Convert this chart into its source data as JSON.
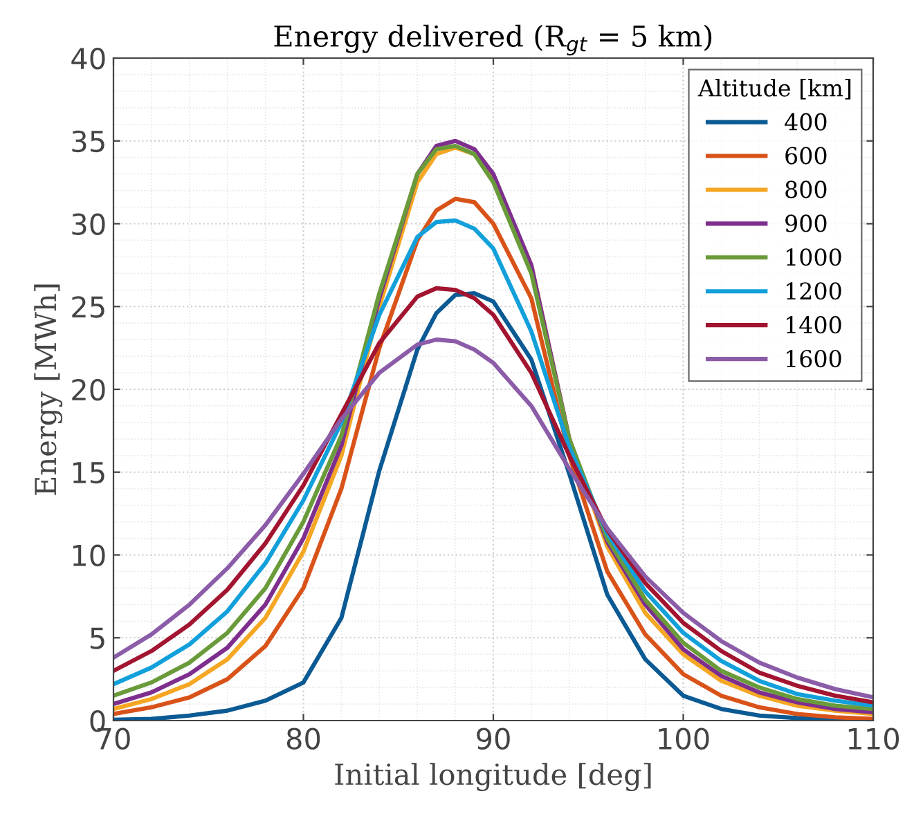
{
  "chart_data": {
    "type": "line",
    "title": "Energy delivered (R$_{gt}$ = 5 km)",
    "xlabel": "Initial longitude [deg]",
    "ylabel": "Energy [MWh]",
    "legend_title": "Altitude [km]",
    "legend": "top right",
    "grid": true,
    "marker": "none",
    "line_style": "solid",
    "xlim": [
      70,
      110
    ],
    "xticks": [
      70,
      80,
      90,
      100,
      110
    ],
    "ylim": [
      0,
      40
    ],
    "yticks": [
      0,
      5,
      10,
      15,
      20,
      25,
      30,
      35,
      40
    ],
    "x": [
      70,
      72,
      74,
      76,
      78,
      80,
      82,
      84,
      86,
      87,
      88,
      89,
      90,
      92,
      94,
      96,
      98,
      100,
      102,
      104,
      106,
      108,
      110
    ],
    "series": [
      {
        "name": "400",
        "color": "#0b5a94",
        "values": [
          0.05,
          0.1,
          0.3,
          0.6,
          1.2,
          2.3,
          6.2,
          15.1,
          22.4,
          24.6,
          25.7,
          25.8,
          25.3,
          21.8,
          14.9,
          7.6,
          3.7,
          1.5,
          0.7,
          0.3,
          0.15,
          0.08,
          0.03
        ]
      },
      {
        "name": "600",
        "color": "#d95319",
        "values": [
          0.4,
          0.8,
          1.4,
          2.5,
          4.5,
          8.0,
          14.0,
          22.5,
          29.0,
          30.8,
          31.5,
          31.3,
          30.0,
          25.5,
          16.0,
          9.0,
          5.2,
          2.8,
          1.5,
          0.8,
          0.4,
          0.2,
          0.1
        ]
      },
      {
        "name": "800",
        "color": "#f5a623",
        "values": [
          0.7,
          1.3,
          2.2,
          3.7,
          6.2,
          10.2,
          16.0,
          25.0,
          32.5,
          34.2,
          34.6,
          34.2,
          32.8,
          27.5,
          17.0,
          10.5,
          6.5,
          4.0,
          2.4,
          1.5,
          0.9,
          0.6,
          0.4
        ]
      },
      {
        "name": "900",
        "color": "#7e2f8e",
        "values": [
          1.0,
          1.7,
          2.8,
          4.4,
          7.0,
          11.0,
          16.6,
          25.5,
          33.0,
          34.7,
          35.0,
          34.5,
          33.0,
          27.5,
          17.0,
          10.8,
          7.0,
          4.3,
          2.7,
          1.7,
          1.1,
          0.7,
          0.5
        ]
      },
      {
        "name": "1000",
        "color": "#6a9b3a",
        "values": [
          1.5,
          2.3,
          3.5,
          5.3,
          8.0,
          12.0,
          17.2,
          25.8,
          33.0,
          34.5,
          34.7,
          34.2,
          32.5,
          27.0,
          17.0,
          11.0,
          7.3,
          4.7,
          3.0,
          2.0,
          1.3,
          0.9,
          0.7
        ]
      },
      {
        "name": "1200",
        "color": "#12a0db",
        "values": [
          2.2,
          3.2,
          4.6,
          6.6,
          9.5,
          13.3,
          18.0,
          24.5,
          29.2,
          30.1,
          30.2,
          29.7,
          28.5,
          23.5,
          16.5,
          11.3,
          7.8,
          5.3,
          3.6,
          2.4,
          1.6,
          1.2,
          0.9
        ]
      },
      {
        "name": "1400",
        "color": "#a2142f",
        "values": [
          3.0,
          4.2,
          5.8,
          7.9,
          10.7,
          14.2,
          18.5,
          22.8,
          25.6,
          26.1,
          26.0,
          25.5,
          24.5,
          21.0,
          16.0,
          11.5,
          8.3,
          5.9,
          4.2,
          2.9,
          2.1,
          1.5,
          1.1
        ]
      },
      {
        "name": "1600",
        "color": "#8b5ca8",
        "values": [
          3.8,
          5.2,
          7.0,
          9.2,
          11.8,
          14.9,
          18.2,
          21.0,
          22.7,
          23.0,
          22.9,
          22.4,
          21.6,
          19.0,
          15.2,
          11.6,
          8.7,
          6.5,
          4.8,
          3.5,
          2.6,
          1.9,
          1.4
        ]
      }
    ]
  }
}
